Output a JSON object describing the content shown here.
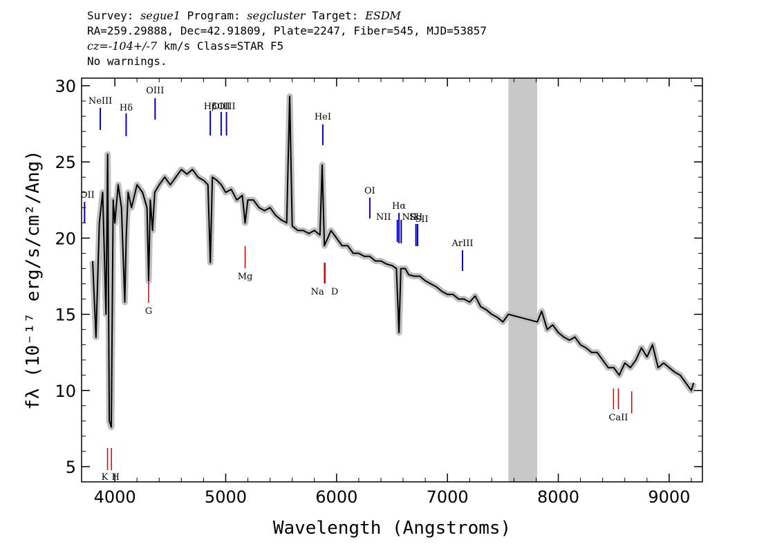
{
  "header": {
    "survey_label": "Survey:",
    "survey": "segue1",
    "program_label": "Program:",
    "program": "segcluster",
    "target_label": "Target:",
    "target": "ESDM",
    "coords": "RA=259.29888, Dec=42.91809, Plate=2247, Fiber=545, MJD=53857",
    "cz": "cz=-104+/-7",
    "cz_units": "km/s Class=STAR F5",
    "warnings": "No warnings."
  },
  "chart_data": {
    "type": "line",
    "xlabel": "Wavelength (Angstroms)",
    "ylabel": "fλ (10⁻¹⁷ erg/s/cm²/Ang)",
    "xlim": [
      3700,
      9300
    ],
    "ylim": [
      4,
      30.5
    ],
    "x_ticks": [
      4000,
      5000,
      6000,
      7000,
      8000,
      9000
    ],
    "y_ticks": [
      5,
      10,
      15,
      20,
      25,
      30
    ],
    "grid": false,
    "masked_region": [
      7550,
      7810
    ],
    "colors": {
      "spectrum": "#000000",
      "error": "#c0c0c0",
      "mask": "#c8c8c8",
      "emission": "#0000cc",
      "absorption": "#cc0000"
    },
    "series": [
      {
        "name": "",
        "x": [
          3800,
          3830,
          3860,
          3890,
          3920,
          3935,
          3950,
          3968,
          3985,
          4000,
          4030,
          4060,
          4090,
          4102,
          4120,
          4150,
          4200,
          4250,
          4290,
          4305,
          4320,
          4340,
          4360,
          4400,
          4450,
          4500,
          4550,
          4600,
          4650,
          4700,
          4750,
          4800,
          4840,
          4861,
          4880,
          4920,
          4960,
          5000,
          5050,
          5100,
          5150,
          5175,
          5200,
          5250,
          5300,
          5350,
          5400,
          5450,
          5500,
          5550,
          5577,
          5600,
          5650,
          5700,
          5750,
          5800,
          5850,
          5870,
          5890,
          5920,
          5950,
          6000,
          6050,
          6100,
          6150,
          6200,
          6250,
          6300,
          6350,
          6400,
          6450,
          6500,
          6540,
          6563,
          6580,
          6620,
          6650,
          6700,
          6750,
          6800,
          6850,
          6900,
          6950,
          7000,
          7050,
          7100,
          7150,
          7200,
          7250,
          7300,
          7350,
          7400,
          7450,
          7500,
          7550,
          7810,
          7850,
          7900,
          7950,
          8000,
          8050,
          8100,
          8150,
          8200,
          8250,
          8300,
          8350,
          8400,
          8450,
          8500,
          8550,
          8600,
          8650,
          8700,
          8750,
          8800,
          8850,
          8900,
          8950,
          9000,
          9050,
          9100,
          9150,
          9200,
          9220
        ],
        "y": [
          18.5,
          13.5,
          21.0,
          23.0,
          15.0,
          25.5,
          8.0,
          7.6,
          22.5,
          21.0,
          23.5,
          22.0,
          15.8,
          20.0,
          23.0,
          22.0,
          23.5,
          23.0,
          22.0,
          17.2,
          22.5,
          20.5,
          23.0,
          23.5,
          24.0,
          23.5,
          24.0,
          24.5,
          24.2,
          24.5,
          24.0,
          23.8,
          23.5,
          18.4,
          24.0,
          23.8,
          23.5,
          23.0,
          23.2,
          22.5,
          22.8,
          21.0,
          22.5,
          22.5,
          22.0,
          21.8,
          22.0,
          21.5,
          21.2,
          21.0,
          29.3,
          20.8,
          20.5,
          20.5,
          20.3,
          20.5,
          20.2,
          24.8,
          19.5,
          20.0,
          20.5,
          20.0,
          19.5,
          19.5,
          19.0,
          19.0,
          18.8,
          18.8,
          18.5,
          18.5,
          18.3,
          18.2,
          18.0,
          13.8,
          18.0,
          18.0,
          17.6,
          17.5,
          17.5,
          17.2,
          17.0,
          16.8,
          16.5,
          16.3,
          16.3,
          16.0,
          16.0,
          15.8,
          16.2,
          15.5,
          15.3,
          15.0,
          14.8,
          14.5,
          15.0,
          14.5,
          15.2,
          14.0,
          14.3,
          13.8,
          13.5,
          13.3,
          13.5,
          13.0,
          12.8,
          12.5,
          12.5,
          12.0,
          11.5,
          11.5,
          11.0,
          11.8,
          11.5,
          12.0,
          12.8,
          12.2,
          13.0,
          11.5,
          11.8,
          11.5,
          11.2,
          11.0,
          10.5,
          10.0,
          10.5
        ]
      }
    ],
    "emission_lines": [
      {
        "label": "OII",
        "wavelength": 3727
      },
      {
        "label": "NeIII",
        "wavelength": 3869
      },
      {
        "label": "Hδ",
        "wavelength": 4102
      },
      {
        "label": "OIII",
        "wavelength": 4363
      },
      {
        "label": "Hβ",
        "wavelength": 4861
      },
      {
        "label": "OIII",
        "wavelength": 4959
      },
      {
        "label": "OIII",
        "wavelength": 5007
      },
      {
        "label": "HeI",
        "wavelength": 5876
      },
      {
        "label": "OI",
        "wavelength": 6300
      },
      {
        "label": "NII",
        "wavelength": 6548
      },
      {
        "label": "Hα",
        "wavelength": 6563
      },
      {
        "label": "NII",
        "wavelength": 6583
      },
      {
        "label": "SII",
        "wavelength": 6716
      },
      {
        "label": "SII",
        "wavelength": 6731
      },
      {
        "label": "ArIII",
        "wavelength": 7136
      }
    ],
    "absorption_lines": [
      {
        "label": "K",
        "wavelength": 3934
      },
      {
        "label": "H",
        "wavelength": 3969
      },
      {
        "label": "G",
        "wavelength": 4305
      },
      {
        "label": "Mg",
        "wavelength": 5175
      },
      {
        "label": "Na",
        "wavelength": 5890
      },
      {
        "label": "D",
        "wavelength": 5896
      },
      {
        "label": "CaII",
        "wavelength": 8498
      },
      {
        "label": "CaII",
        "wavelength": 8542
      },
      {
        "label": "CaII",
        "wavelength": 8662
      }
    ]
  }
}
